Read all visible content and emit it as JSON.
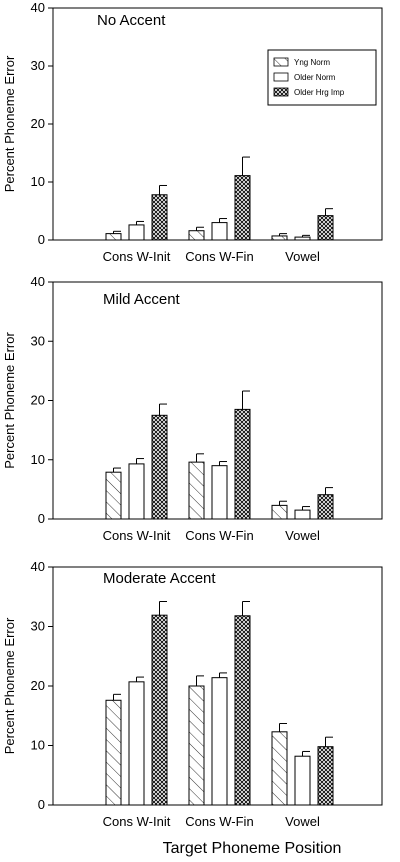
{
  "figure": {
    "xlabel": "Target Phoneme Position"
  },
  "colors": {
    "axis": "#000000",
    "bar_fill_open": "#ffffff"
  },
  "chart_data": [
    {
      "type": "bar",
      "title": "No Accent",
      "ylabel": "Percent Phoneme Error",
      "ylim": [
        0,
        40
      ],
      "yticks": [
        0,
        10,
        20,
        30,
        40
      ],
      "categories": [
        "Cons W-Init",
        "Cons W-Fin",
        "Vowel"
      ],
      "legend": {
        "placement": "top-right",
        "show": true
      },
      "series": [
        {
          "name": "Yng Norm",
          "pattern": "diagonal-hatch",
          "values": [
            1.1,
            1.6,
            0.7
          ],
          "errors": [
            0.4,
            0.6,
            0.4
          ]
        },
        {
          "name": "Older Norm",
          "pattern": "open",
          "values": [
            2.6,
            3.0,
            0.5
          ],
          "errors": [
            0.6,
            0.7,
            0.3
          ]
        },
        {
          "name": "Older Hrg Imp",
          "pattern": "crosshatch",
          "values": [
            7.8,
            11.1,
            4.2
          ],
          "errors": [
            1.6,
            3.2,
            1.2
          ]
        }
      ]
    },
    {
      "type": "bar",
      "title": "Mild Accent",
      "ylabel": "Percent Phoneme Error",
      "ylim": [
        0,
        40
      ],
      "yticks": [
        0,
        10,
        20,
        30,
        40
      ],
      "categories": [
        "Cons W-Init",
        "Cons W-Fin",
        "Vowel"
      ],
      "legend": {
        "show": false
      },
      "series": [
        {
          "name": "Yng Norm",
          "pattern": "diagonal-hatch",
          "values": [
            7.9,
            9.6,
            2.3
          ],
          "errors": [
            0.7,
            1.4,
            0.7
          ]
        },
        {
          "name": "Older Norm",
          "pattern": "open",
          "values": [
            9.3,
            9.0,
            1.5
          ],
          "errors": [
            0.9,
            0.7,
            0.6
          ]
        },
        {
          "name": "Older Hrg Imp",
          "pattern": "crosshatch",
          "values": [
            17.5,
            18.5,
            4.1
          ],
          "errors": [
            1.9,
            3.1,
            1.2
          ]
        }
      ]
    },
    {
      "type": "bar",
      "title": "Moderate Accent",
      "ylabel": "Percent Phoneme Error",
      "ylim": [
        0,
        40
      ],
      "yticks": [
        0,
        10,
        20,
        30,
        40
      ],
      "categories": [
        "Cons W-Init",
        "Cons W-Fin",
        "Vowel"
      ],
      "legend": {
        "show": false
      },
      "series": [
        {
          "name": "Yng Norm",
          "pattern": "diagonal-hatch",
          "values": [
            17.6,
            20.0,
            12.3
          ],
          "errors": [
            1.0,
            1.7,
            1.4
          ]
        },
        {
          "name": "Older Norm",
          "pattern": "open",
          "values": [
            20.7,
            21.4,
            8.2
          ],
          "errors": [
            0.8,
            0.8,
            0.8
          ]
        },
        {
          "name": "Older Hrg Imp",
          "pattern": "crosshatch",
          "values": [
            31.9,
            31.8,
            9.8
          ],
          "errors": [
            2.3,
            2.4,
            1.6
          ]
        }
      ]
    }
  ]
}
